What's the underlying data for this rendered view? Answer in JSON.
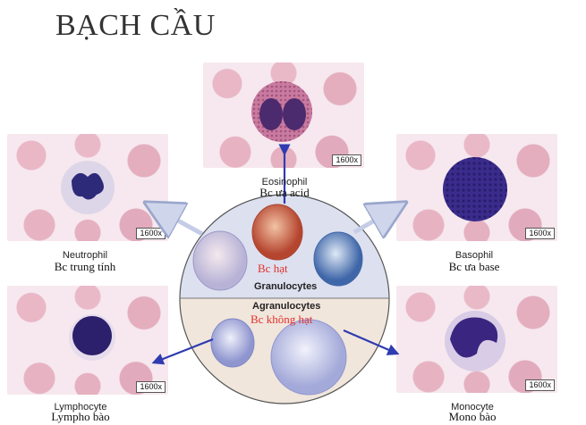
{
  "title": "BẠCH CẦU",
  "magnification": "1600x",
  "cells": {
    "eosinophil": {
      "name": "Eosinophil",
      "vi": "Bc ưa acid"
    },
    "neutrophil": {
      "name": "Neutrophil",
      "vi": "Bc trung tính"
    },
    "basophil": {
      "name": "Basophil",
      "vi": "Bc ưa base"
    },
    "lymphocyte": {
      "name": "Lymphocyte",
      "vi": "Lympho bào"
    },
    "monocyte": {
      "name": "Monocyte",
      "vi": "Mono bào"
    }
  },
  "circle": {
    "granulocytes": "Granulocytes",
    "granulocytes_vi": "Bc hạt",
    "agranulocytes": "Agranulocytes",
    "agranulocytes_vi": "Bc không hạt"
  },
  "colors": {
    "arrow": "#2f3bb0",
    "label_red": "#e0302b",
    "upper_half": "#dde0ef",
    "lower_half": "#f1e6dc"
  }
}
